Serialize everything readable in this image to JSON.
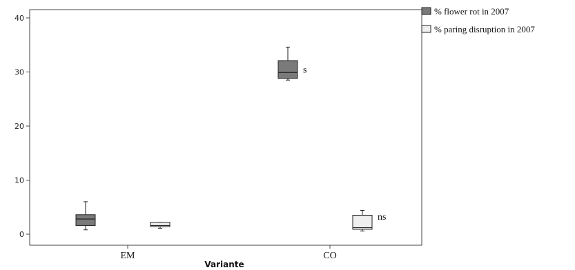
{
  "chart_data": {
    "type": "box",
    "xlabel": "Variante",
    "ylabel": "",
    "ylim": [
      0,
      40
    ],
    "yticks": [
      0,
      10,
      20,
      30,
      40
    ],
    "categories": [
      "EM",
      "CO"
    ],
    "legend_position": "top-right",
    "grid": false,
    "series": [
      {
        "name": "% flower rot in 2007",
        "color": "#7a7a7a",
        "boxes": [
          {
            "category": "EM",
            "min": 0.8,
            "q1": 1.6,
            "median": 2.8,
            "q3": 3.6,
            "max": 6.0
          },
          {
            "category": "CO",
            "min": 28.5,
            "q1": 28.8,
            "median": 29.9,
            "q3": 32.1,
            "max": 34.6
          }
        ]
      },
      {
        "name": "% paring disruption in 2007",
        "color": "#efefef",
        "boxes": [
          {
            "category": "EM",
            "min": 1.1,
            "q1": 1.4,
            "median": 1.6,
            "q3": 2.2,
            "max": 2.2
          },
          {
            "category": "CO",
            "min": 0.6,
            "q1": 0.9,
            "median": 1.2,
            "q3": 3.5,
            "max": 4.4
          }
        ]
      }
    ],
    "annotations": [
      {
        "text": "s",
        "category": "CO",
        "series": 0,
        "value": 30.5
      },
      {
        "text": "ns",
        "category": "CO",
        "series": 1,
        "value": 3.3
      }
    ]
  }
}
